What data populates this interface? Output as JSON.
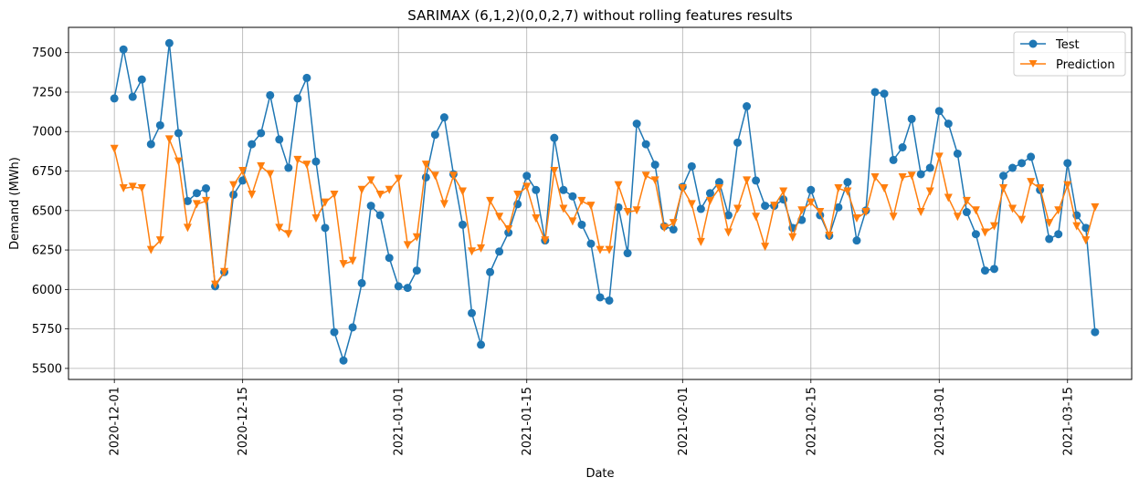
{
  "chart_data": {
    "type": "line",
    "title": "SARIMAX (6,1,2)(0,0,2,7) without rolling features results",
    "xlabel": "Date",
    "ylabel": "Demand (MWh)",
    "x_start": "2020-12-01",
    "x_end": "2021-03-18",
    "xlim": [
      "2020-11-26",
      "2021-03-22"
    ],
    "ylim": [
      5430,
      7660
    ],
    "x_ticks": [
      "2020-12-01",
      "2020-12-15",
      "2021-01-01",
      "2021-01-15",
      "2021-02-01",
      "2021-02-15",
      "2021-03-01",
      "2021-03-15"
    ],
    "y_ticks": [
      5500,
      5750,
      6000,
      6250,
      6500,
      6750,
      7000,
      7250,
      7500
    ],
    "grid": true,
    "legend_position": "top-right",
    "series": [
      {
        "name": "Test",
        "color": "#1f77b4",
        "marker": "circle",
        "values": [
          7210,
          7520,
          7220,
          7330,
          6920,
          7040,
          7560,
          6990,
          6560,
          6610,
          6640,
          6020,
          6110,
          6600,
          6690,
          6920,
          6990,
          7230,
          6950,
          6770,
          7210,
          7340,
          6810,
          6390,
          5730,
          5550,
          5760,
          6040,
          6530,
          6470,
          6200,
          6020,
          6010,
          6120,
          6710,
          6980,
          7090,
          6730,
          6410,
          5850,
          5650,
          6110,
          6240,
          6360,
          6540,
          6720,
          6630,
          6310,
          6960,
          6630,
          6590,
          6410,
          6290,
          5950,
          5930,
          6520,
          6230,
          7050,
          6920,
          6790,
          6400,
          6380,
          6650,
          6780,
          6510,
          6610,
          6680,
          6470,
          6930,
          7160,
          6690,
          6530,
          6530,
          6570,
          6390,
          6440,
          6630,
          6470,
          6340,
          6520,
          6680,
          6310,
          6500,
          7250,
          7240,
          6820,
          6900,
          7080,
          6730,
          6770,
          7130,
          7050,
          6860,
          6490,
          6350,
          6120,
          6130,
          6720,
          6770,
          6800,
          6840,
          6630,
          6320,
          6350,
          6800,
          6470,
          6390,
          5730
        ]
      },
      {
        "name": "Prediction",
        "color": "#ff7f0e",
        "marker": "triangle-down",
        "values": [
          6890,
          6640,
          6650,
          6640,
          6250,
          6310,
          6950,
          6810,
          6390,
          6540,
          6560,
          6030,
          6110,
          6660,
          6750,
          6600,
          6780,
          6730,
          6390,
          6350,
          6820,
          6790,
          6450,
          6550,
          6600,
          6160,
          6180,
          6630,
          6690,
          6600,
          6630,
          6700,
          6280,
          6330,
          6790,
          6720,
          6540,
          6720,
          6620,
          6240,
          6260,
          6560,
          6460,
          6380,
          6600,
          6650,
          6450,
          6310,
          6750,
          6510,
          6430,
          6560,
          6530,
          6250,
          6250,
          6660,
          6490,
          6500,
          6720,
          6690,
          6390,
          6420,
          6640,
          6540,
          6300,
          6560,
          6640,
          6360,
          6510,
          6690,
          6460,
          6270,
          6530,
          6620,
          6330,
          6500,
          6550,
          6490,
          6340,
          6640,
          6620,
          6450,
          6490,
          6710,
          6640,
          6460,
          6710,
          6720,
          6490,
          6620,
          6840,
          6580,
          6460,
          6560,
          6500,
          6360,
          6400,
          6640,
          6510,
          6440,
          6680,
          6640,
          6420,
          6500,
          6660,
          6400,
          6310,
          6520
        ]
      }
    ]
  }
}
